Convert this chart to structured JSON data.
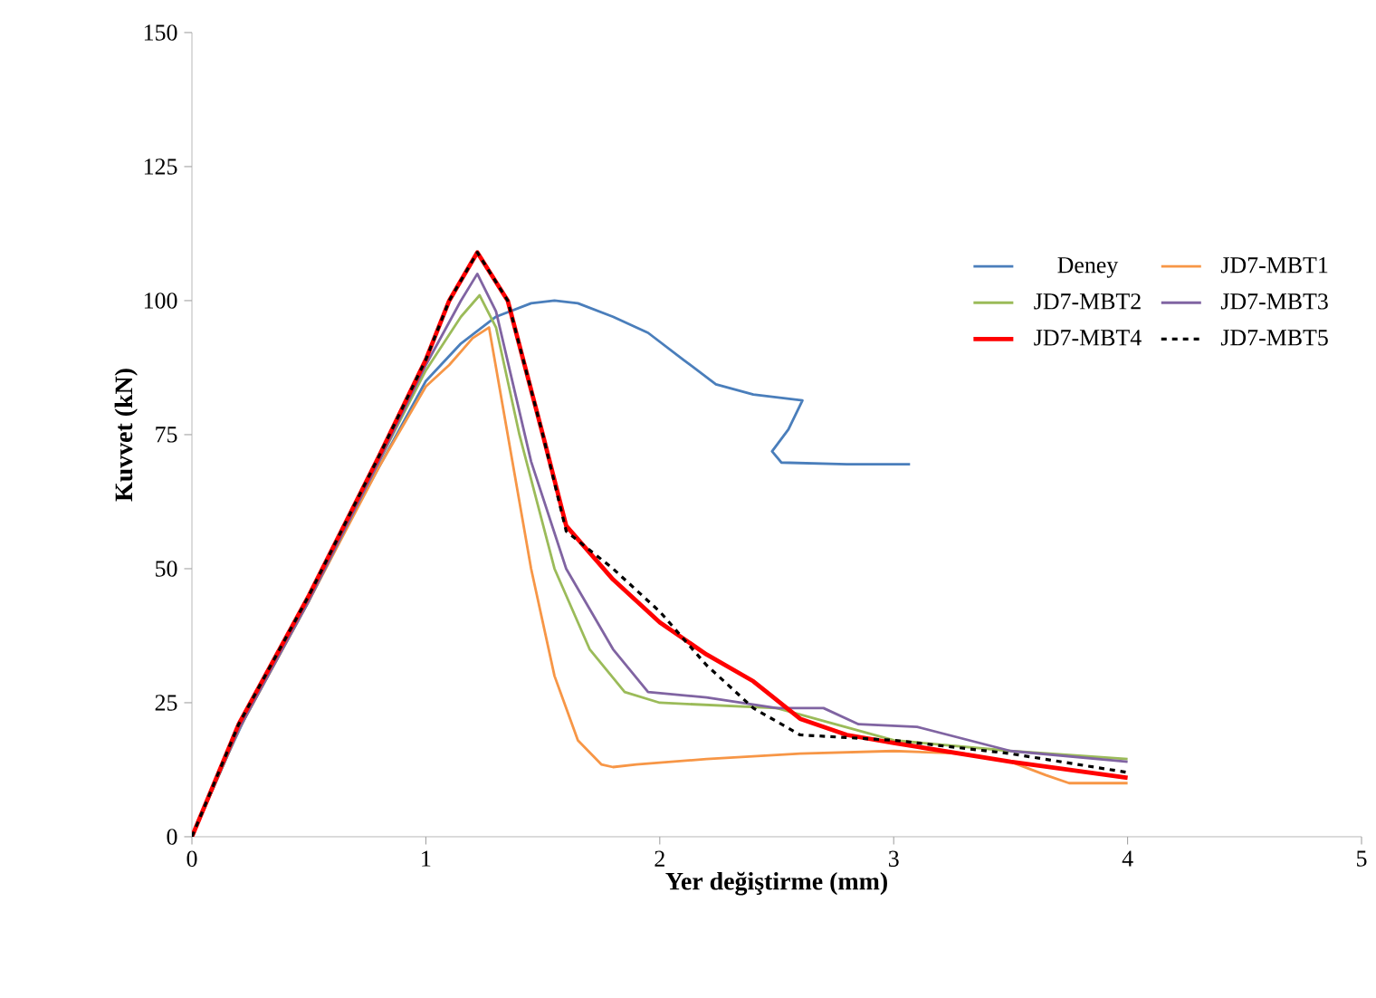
{
  "chart_data": {
    "type": "line",
    "xlabel": "Yer değiştirme (mm)",
    "ylabel": "Kuvvet (kN)",
    "xlim": [
      0,
      5
    ],
    "ylim": [
      0,
      150
    ],
    "xticks": [
      0,
      1,
      2,
      3,
      4,
      5
    ],
    "yticks": [
      0,
      25,
      50,
      75,
      100,
      125,
      150
    ],
    "grid": false,
    "legend": "top right",
    "line_style": "solid",
    "marker": "none",
    "series": [
      {
        "name": "Deney",
        "color": "#4a7ebb",
        "x": [
          0,
          0.15,
          0.3,
          0.5,
          0.75,
          1.0,
          1.15,
          1.3,
          1.45,
          1.55,
          1.65,
          1.8,
          1.95,
          2.1,
          2.24,
          2.4,
          2.61,
          2.55,
          2.48,
          2.52,
          2.8,
          3.07
        ],
        "values": [
          0,
          15,
          29,
          45,
          65,
          85,
          92,
          97,
          99.5,
          100,
          99.5,
          97,
          94,
          89,
          84.4,
          82.5,
          81.4,
          76,
          71.9,
          69.8,
          69.5,
          69.5
        ]
      },
      {
        "name": "JD7-MBT1",
        "color": "#f79646",
        "x": [
          0,
          0.2,
          0.5,
          0.8,
          1.0,
          1.1,
          1.2,
          1.27,
          1.35,
          1.45,
          1.55,
          1.65,
          1.75,
          1.8,
          1.9,
          2.2,
          2.6,
          3.0,
          3.3,
          3.5,
          3.65,
          3.75,
          4.0
        ],
        "values": [
          0,
          20,
          44,
          69,
          84,
          88,
          93,
          95,
          75,
          50,
          30,
          18,
          13.5,
          13,
          13.5,
          14.5,
          15.5,
          16,
          15.5,
          14,
          11.5,
          10,
          10
        ]
      },
      {
        "name": "JD7-MBT2",
        "color": "#9bbb59",
        "x": [
          0,
          0.2,
          0.5,
          0.8,
          1.0,
          1.15,
          1.23,
          1.3,
          1.4,
          1.55,
          1.7,
          1.85,
          2.0,
          2.5,
          3.0,
          3.5,
          4.0
        ],
        "values": [
          0,
          20,
          44,
          70,
          87,
          97,
          101,
          95,
          75,
          50,
          35,
          27,
          25,
          24,
          18,
          16,
          14.5
        ]
      },
      {
        "name": "JD7-MBT3",
        "color": "#8064a2",
        "x": [
          0,
          0.2,
          0.5,
          0.8,
          1.0,
          1.15,
          1.22,
          1.3,
          1.45,
          1.6,
          1.8,
          1.95,
          2.2,
          2.5,
          2.7,
          2.85,
          3.1,
          3.5,
          4.0
        ],
        "values": [
          0,
          20,
          44,
          70,
          88,
          100,
          105,
          98,
          70,
          50,
          35,
          27,
          26,
          24,
          24,
          21,
          20.5,
          16,
          14
        ]
      },
      {
        "name": "JD7-MBT4",
        "color": "#ff0000",
        "x": [
          0,
          0.2,
          0.5,
          0.8,
          1.0,
          1.1,
          1.22,
          1.35,
          1.5,
          1.6,
          1.8,
          2.0,
          2.2,
          2.4,
          2.6,
          2.8,
          3.0,
          3.5,
          4.0
        ],
        "values": [
          0,
          21,
          45,
          71,
          89,
          100,
          109,
          100,
          75,
          58,
          48,
          40,
          34,
          29,
          22,
          19,
          17.5,
          14,
          11
        ]
      },
      {
        "name": "JD7-MBT5",
        "color": "#000000",
        "line_style": "dashed",
        "x": [
          0,
          0.2,
          0.5,
          0.8,
          1.0,
          1.1,
          1.22,
          1.35,
          1.5,
          1.6,
          1.8,
          2.0,
          2.2,
          2.4,
          2.6,
          3.0,
          3.5,
          4.0
        ],
        "values": [
          0,
          21,
          45,
          71,
          89,
          100,
          109,
          100,
          75,
          57,
          50,
          42,
          32,
          24,
          19,
          18,
          15.5,
          12
        ]
      }
    ]
  }
}
